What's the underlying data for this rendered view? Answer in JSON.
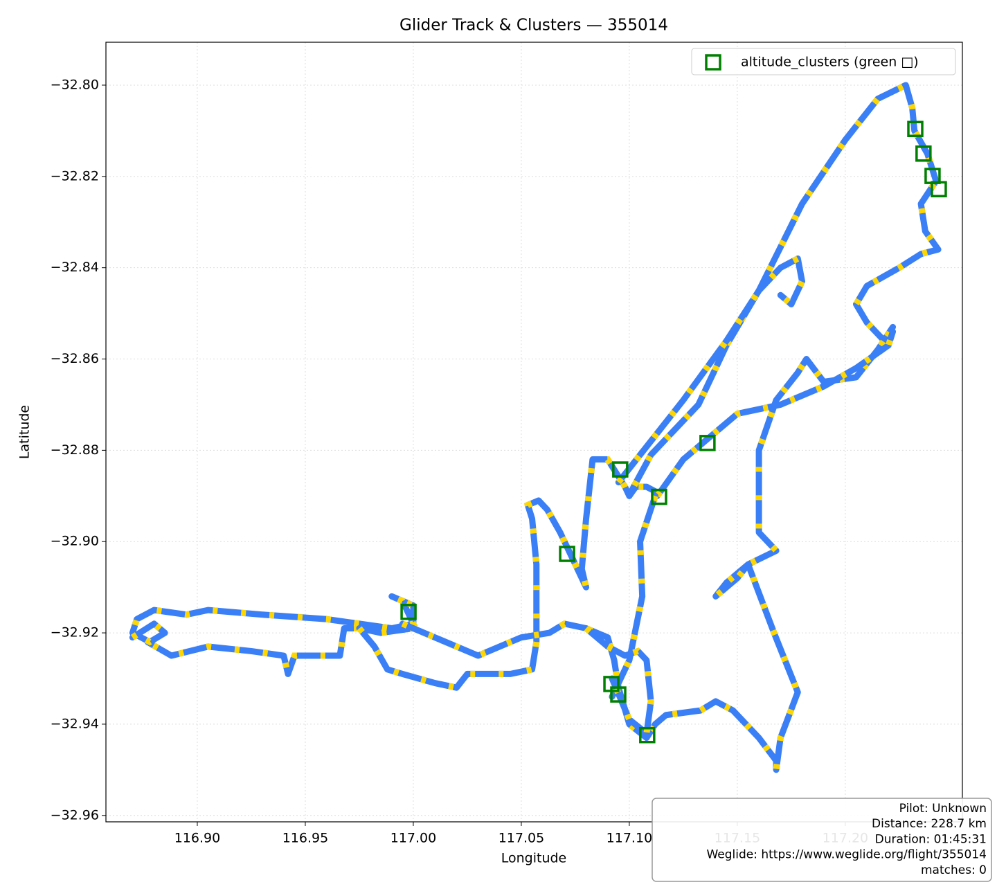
{
  "chart_data": {
    "type": "line",
    "title": "Glider Track & Clusters — 355014",
    "xlabel": "Longitude",
    "ylabel": "Latitude",
    "xlim": [
      116.8577,
      117.2542
    ],
    "ylim": [
      -32.9614,
      -32.7906
    ],
    "xticks": [
      {
        "value": 116.9,
        "label": "116.90"
      },
      {
        "value": 116.95,
        "label": "116.95"
      },
      {
        "value": 117.0,
        "label": "117.00"
      },
      {
        "value": 117.05,
        "label": "117.05"
      },
      {
        "value": 117.1,
        "label": "117.10"
      },
      {
        "value": 117.15,
        "label": "117.15"
      },
      {
        "value": 117.2,
        "label": "117.20"
      }
    ],
    "yticks": [
      {
        "value": -32.8,
        "label": "−32.80"
      },
      {
        "value": -32.82,
        "label": "−32.82"
      },
      {
        "value": -32.84,
        "label": "−32.84"
      },
      {
        "value": -32.86,
        "label": "−32.86"
      },
      {
        "value": -32.88,
        "label": "−32.88"
      },
      {
        "value": -32.9,
        "label": "−32.90"
      },
      {
        "value": -32.92,
        "label": "−32.92"
      },
      {
        "value": -32.94,
        "label": "−32.94"
      },
      {
        "value": -32.96,
        "label": "−32.96"
      }
    ],
    "grid": true,
    "legend": "upper right",
    "track_color": "#3a7ff6",
    "highlight_color": "#ffd700",
    "series": [
      {
        "x": [
          116.87,
          116.88,
          116.885,
          116.878,
          116.87,
          116.872,
          116.88,
          116.895,
          116.905,
          116.93,
          116.96,
          116.99,
          117.0,
          116.995,
          116.99,
          117.0,
          117.0,
          116.985,
          116.975,
          116.968,
          116.966,
          116.945,
          116.942,
          116.94,
          116.925,
          116.905,
          116.888,
          116.877
        ],
        "y": [
          -32.921,
          -32.918,
          -32.92,
          -32.922,
          -32.92,
          -32.917,
          -32.915,
          -32.916,
          -32.915,
          -32.916,
          -32.917,
          -32.919,
          -32.918,
          -32.913,
          -32.912,
          -32.914,
          -32.919,
          -32.92,
          -32.919,
          -32.919,
          -32.925,
          -32.925,
          -32.929,
          -32.925,
          -32.924,
          -32.923,
          -32.925,
          -32.922
        ]
      },
      {
        "x": [
          116.975,
          116.982,
          116.988,
          116.995,
          117.01,
          117.02,
          117.025,
          117.045,
          117.055,
          117.057,
          117.057,
          117.055,
          117.053,
          117.058,
          117.062,
          117.068,
          117.075,
          117.08,
          117.078,
          117.08,
          117.083,
          117.09,
          117.098,
          117.1,
          117.103,
          117.108,
          117.112
        ],
        "y": [
          -32.919,
          -32.923,
          -32.928,
          -32.929,
          -32.931,
          -32.932,
          -32.929,
          -32.929,
          -32.928,
          -32.922,
          -32.905,
          -32.895,
          -32.892,
          -32.891,
          -32.893,
          -32.898,
          -32.905,
          -32.91,
          -32.906,
          -32.895,
          -32.882,
          -32.882,
          -32.888,
          -32.89,
          -32.888,
          -32.888,
          -32.889
        ]
      },
      {
        "x": [
          116.995,
          117.03,
          117.05,
          117.063,
          117.07,
          117.08,
          117.09,
          117.093,
          117.095,
          117.1,
          117.108,
          117.112,
          117.117,
          117.133,
          117.14,
          117.148,
          117.16,
          117.168,
          117.168,
          117.17,
          117.178,
          117.167,
          117.155,
          117.15,
          117.14,
          117.145,
          117.155,
          117.168,
          117.16,
          117.16,
          117.168,
          117.178,
          117.182,
          117.19,
          117.205,
          117.215,
          117.222,
          117.218,
          117.21,
          117.205,
          117.21,
          117.225,
          117.235,
          117.243,
          117.237,
          117.235,
          117.242,
          117.238,
          117.232,
          117.231,
          117.228,
          117.215,
          117.2,
          117.18,
          117.16,
          117.145,
          117.132,
          117.11,
          117.102,
          117.1
        ],
        "y": [
          -32.918,
          -32.925,
          -32.921,
          -32.92,
          -32.918,
          -32.919,
          -32.921,
          -32.926,
          -32.932,
          -32.94,
          -32.943,
          -32.94,
          -32.938,
          -32.937,
          -32.935,
          -32.937,
          -32.943,
          -32.948,
          -32.95,
          -32.943,
          -32.933,
          -32.92,
          -32.905,
          -32.908,
          -32.912,
          -32.909,
          -32.905,
          -32.902,
          -32.898,
          -32.88,
          -32.869,
          -32.863,
          -32.86,
          -32.865,
          -32.864,
          -32.858,
          -32.853,
          -32.856,
          -32.852,
          -32.848,
          -32.844,
          -32.84,
          -32.837,
          -32.836,
          -32.832,
          -32.826,
          -32.821,
          -32.815,
          -32.81,
          -32.805,
          -32.8,
          -32.803,
          -32.812,
          -32.826,
          -32.845,
          -32.857,
          -32.87,
          -32.881,
          -32.888,
          -32.89
        ]
      },
      {
        "x": [
          117.113,
          117.125,
          117.15,
          117.17,
          117.19,
          117.205,
          117.22,
          117.222
        ],
        "y": [
          -32.89,
          -32.882,
          -32.872,
          -32.87,
          -32.866,
          -32.862,
          -32.857,
          -32.854
        ]
      },
      {
        "x": [
          117.112,
          117.105,
          117.106,
          117.1,
          117.092
        ],
        "y": [
          -32.89,
          -32.9,
          -32.912,
          -32.926,
          -32.934
        ]
      },
      {
        "x": [
          117.095,
          117.125,
          117.145,
          117.16,
          117.17,
          117.178,
          117.18,
          117.175,
          117.17
        ],
        "y": [
          -32.887,
          -32.869,
          -32.856,
          -32.845,
          -32.84,
          -32.838,
          -32.843,
          -32.848,
          -32.846
        ]
      },
      {
        "x": [
          117.08,
          117.09,
          117.098,
          117.104,
          117.108,
          117.11,
          117.108,
          117.1,
          117.092
        ],
        "y": [
          -32.919,
          -32.923,
          -32.925,
          -32.924,
          -32.926,
          -32.935,
          -32.942,
          -32.939,
          -32.93
        ]
      }
    ],
    "clusters": {
      "name": "altitude_clusters (green □)",
      "color": "#008000",
      "x": [
        117.2324,
        117.2362,
        117.2404,
        117.2433,
        117.1362,
        117.1138,
        117.0958,
        117.0712,
        116.9978,
        117.0917,
        117.0949,
        117.1083
      ],
      "y": [
        -32.8096,
        -32.815,
        -32.8199,
        -32.8228,
        -32.8784,
        -32.8902,
        -32.8842,
        -32.9027,
        -32.9154,
        -32.9312,
        -32.9335,
        -32.9424
      ]
    },
    "info": [
      "Pilot: Unknown",
      "Distance: 228.7 km",
      "Duration: 01:45:31",
      "Weglide: https://www.weglide.org/flight/355014",
      "matches: 0"
    ]
  }
}
